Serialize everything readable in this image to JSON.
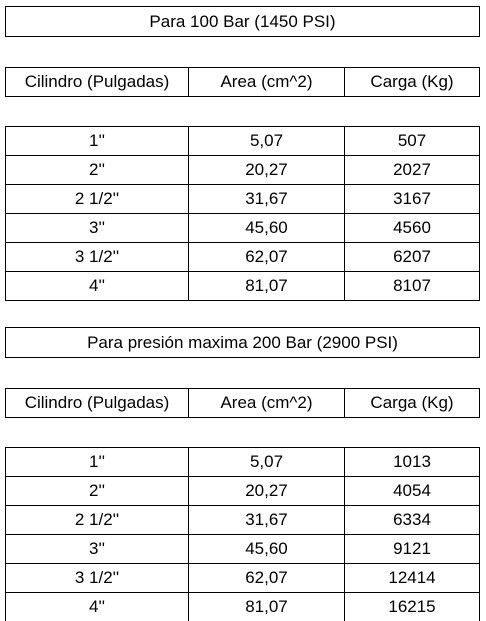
{
  "sections": [
    {
      "title": "Para 100 Bar (1450 PSI)",
      "header": [
        "Cilindro (Pulgadas)",
        "Area (cm^2)",
        "Carga (Kg)"
      ],
      "rows": [
        [
          "1''",
          "5,07",
          "507"
        ],
        [
          "2''",
          "20,27",
          "2027"
        ],
        [
          "2 1/2''",
          "31,67",
          "3167"
        ],
        [
          "3''",
          "45,60",
          "4560"
        ],
        [
          "3 1/2''",
          "62,07",
          "6207"
        ],
        [
          "4''",
          "81,07",
          "8107"
        ]
      ]
    },
    {
      "title": "Para presión maxima 200 Bar (2900 PSI)",
      "header": [
        "Cilindro (Pulgadas)",
        "Area (cm^2)",
        "Carga (Kg)"
      ],
      "rows": [
        [
          "1''",
          "5,07",
          "1013"
        ],
        [
          "2''",
          "20,27",
          "4054"
        ],
        [
          "2 1/2''",
          "31,67",
          "6334"
        ],
        [
          "3''",
          "45,60",
          "9121"
        ],
        [
          "3 1/2''",
          "62,07",
          "12414"
        ],
        [
          "4''",
          "81,07",
          "16215"
        ]
      ]
    }
  ]
}
